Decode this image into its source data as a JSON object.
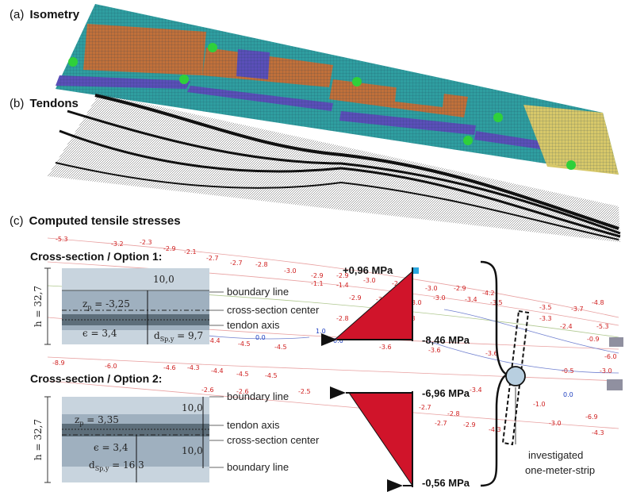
{
  "panels": {
    "a": {
      "letter": "(a)",
      "title": "Isometry"
    },
    "b": {
      "letter": "(b)",
      "title": "Tendons"
    },
    "c": {
      "letter": "(c)",
      "title": "Computed tensile stresses"
    }
  },
  "option1": {
    "title": "Cross-section / Option 1:",
    "h": "h = 32,7",
    "zp": "z",
    "zp_sub": "p",
    "zp_val": " = -3,25",
    "eps": "ϵ = 3,4",
    "dim_top": "10,0",
    "dsp": "d",
    "dsp_sub": "Sp,y",
    "dsp_val": " = 9,7",
    "lbl_boundary": "boundary line",
    "lbl_center": "cross-section center",
    "lbl_tendon": "tendon axis"
  },
  "option2": {
    "title": "Cross-section / Option 2:",
    "h": "h = 32,7",
    "zp": "z",
    "zp_sub": "p",
    "zp_val": " = 3,35",
    "eps": "ϵ = 3,4",
    "dim_top": "10,0",
    "dim_mid": "10,0",
    "dsp": "d",
    "dsp_sub": "Sp,y",
    "dsp_val": " = 16,3",
    "lbl_boundary_top": "boundary line",
    "lbl_tendon": "tendon axis",
    "lbl_center": "cross-section center",
    "lbl_boundary_bottom": "boundary line"
  },
  "stresses": {
    "s1_top": "+0,96 MPa",
    "s1_bottom": "-8,46 MPa",
    "s2_top": "-6,96 MPa",
    "s2_bottom": "-0,56 MPa"
  },
  "strip": {
    "line1": "investigated",
    "line2": "one-meter-strip"
  },
  "contours": {
    "red": [
      "-5.3",
      "-3.2",
      "-2.3",
      "-2.9",
      "-2.1",
      "-2.7",
      "-2.7",
      "-2.8",
      "-3.0",
      "-2.9",
      "-2.9",
      "-3.0",
      "-2.9",
      "-3.0",
      "-2.9",
      "-4.2",
      "-1.1",
      "-1.4",
      "-2.9",
      "-3.2",
      "-3.0",
      "-3.4",
      "-3.5",
      "-3.0",
      "-3.5",
      "-3.7",
      "-2.8",
      "-3.8",
      "-4.4",
      "-4.4",
      "-4.5",
      "-4.5",
      "-3.6",
      "-3.6",
      "-3.6",
      "-8.9",
      "-6.0",
      "-4.6",
      "-4.3",
      "-4.4",
      "-4.5",
      "-4.5",
      "-2.6",
      "-2.6",
      "-2.5",
      "-2.7",
      "-2.8",
      "-3.4",
      "-2.7",
      "-2.9",
      "-4.3",
      "-4.8",
      "-5.3",
      "-9.0",
      "-6.0",
      "-0.9",
      "-3.0",
      "-4.3",
      "-6.9",
      "-2.4",
      "-0.5",
      "-1.0",
      "-3.0",
      "-3.3"
    ],
    "blue": [
      "1.0",
      "0.6",
      "2.0",
      "0.0",
      "0.0"
    ]
  },
  "colors": {
    "triangle": "#d0142a",
    "blue_tip": "#2aa8e0",
    "mesh_teal": "#2f9ea0",
    "mesh_orange": "#c0703a",
    "mesh_purple": "#5a4fb8",
    "mesh_yellow": "#d7c86a",
    "support_green": "#2fd03a"
  }
}
